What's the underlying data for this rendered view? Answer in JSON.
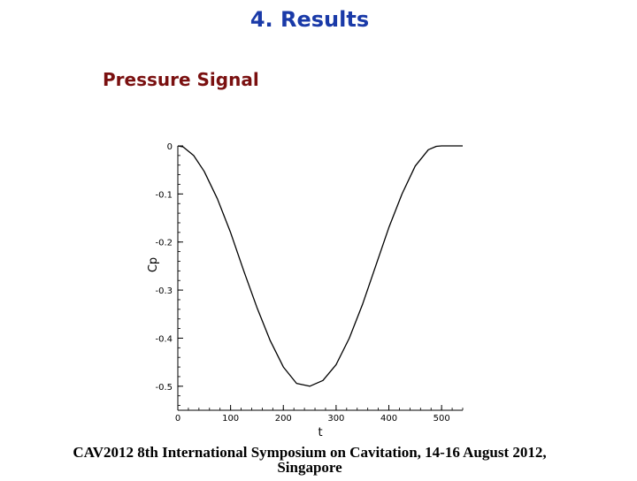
{
  "slide": {
    "title": "4. Results",
    "subtitle": "Pressure Signal",
    "footer_line1": "CAV2012 8th International Symposium on Cavitation, 14-16 August 2012,",
    "footer_line2": "Singapore"
  },
  "colors": {
    "title": "#1a3aa8",
    "subtitle": "#7a1010",
    "curve": "#000000"
  },
  "chart_data": {
    "type": "line",
    "xlabel": "t",
    "ylabel": "Cp",
    "xlim": [
      0,
      540
    ],
    "ylim": [
      -0.55,
      0.0
    ],
    "x_ticks": [
      0,
      100,
      200,
      300,
      400,
      500
    ],
    "y_ticks": [
      0,
      -0.1,
      -0.2,
      -0.3,
      -0.4,
      -0.5
    ],
    "x_tick_labels": [
      "0",
      "100",
      "200",
      "300",
      "400",
      "500"
    ],
    "y_tick_labels": [
      "0",
      "-0.1",
      "-0.2",
      "-0.3",
      "-0.4",
      "-0.5"
    ],
    "grid": false,
    "series": [
      {
        "x": [
          0,
          10,
          30,
          50,
          75,
          100,
          125,
          150,
          175,
          200,
          225,
          250,
          275,
          300,
          325,
          350,
          375,
          400,
          425,
          450,
          475,
          490,
          500,
          540
        ],
        "y": [
          0.0,
          -0.002,
          -0.02,
          -0.053,
          -0.11,
          -0.18,
          -0.26,
          -0.336,
          -0.405,
          -0.46,
          -0.494,
          -0.5,
          -0.488,
          -0.455,
          -0.4,
          -0.33,
          -0.25,
          -0.17,
          -0.1,
          -0.042,
          -0.008,
          -0.001,
          0.0,
          0.0
        ]
      }
    ]
  }
}
